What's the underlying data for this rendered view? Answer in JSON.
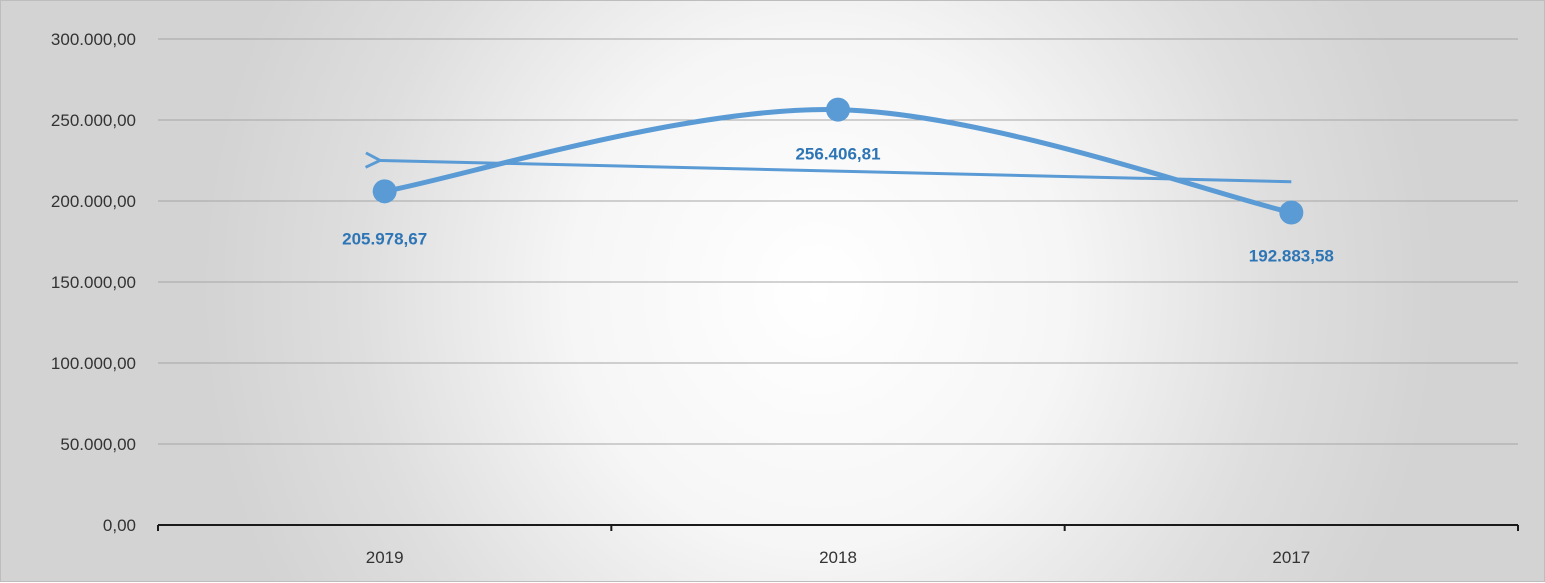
{
  "chart_data": {
    "type": "line",
    "categories": [
      "2019",
      "2018",
      "2017"
    ],
    "series": [
      {
        "values": [
          205978.67,
          256406.81,
          192883.58
        ],
        "data_labels": [
          "205.978,67",
          "256.406,81",
          "192.883,58"
        ],
        "smooth": true,
        "markers": true
      }
    ],
    "trendline": {
      "type": "linear",
      "direction": "toward-first-category",
      "arrow": true
    },
    "ylim": [
      0,
      300000
    ],
    "yticks": [
      0,
      50000,
      100000,
      150000,
      200000,
      250000,
      300000
    ],
    "ytick_labels": [
      "0,00",
      "50.000,00",
      "100.000,00",
      "150.000,00",
      "200.000,00",
      "250.000,00",
      "300.000,00"
    ],
    "grid": true,
    "legend": false,
    "title": "",
    "xlabel": "",
    "ylabel": ""
  },
  "colors": {
    "series": "#5b9bd5",
    "data_label": "#2e75b6",
    "grid": "#a6a6a6",
    "axis": "#1a1a1a",
    "tick_text": "#333333"
  }
}
